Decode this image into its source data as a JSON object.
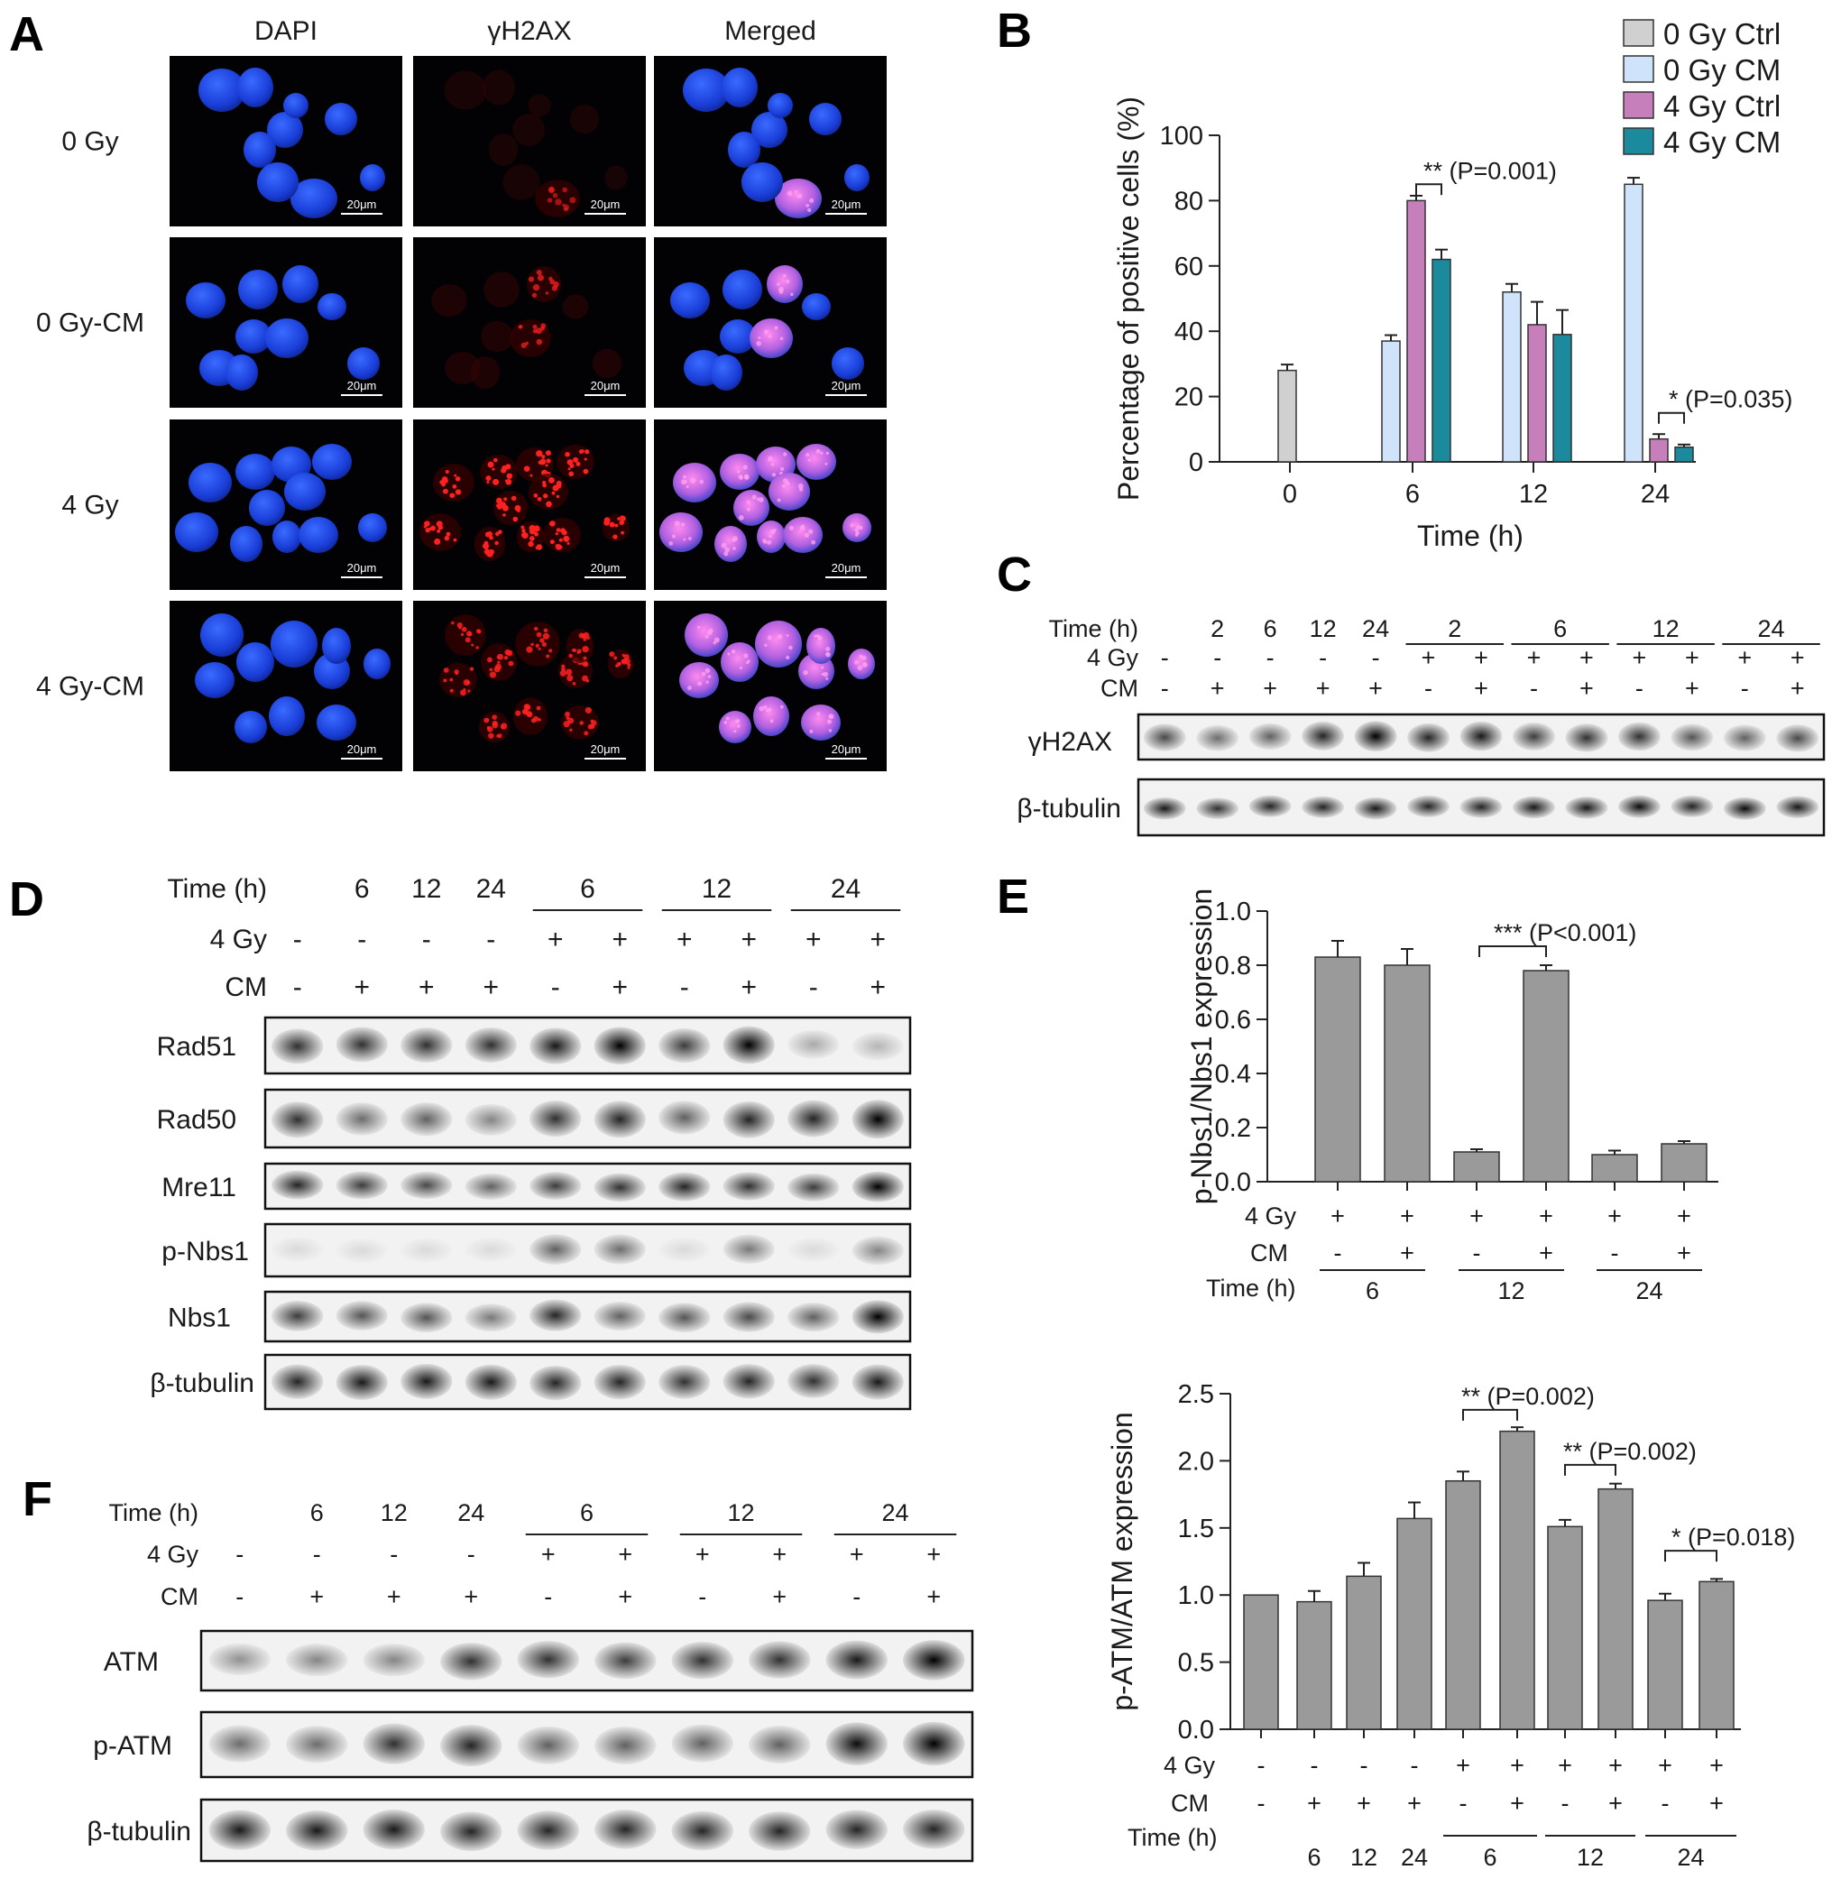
{
  "panelA": {
    "letter": "A",
    "col_headers": [
      "DAPI",
      "γH2AX",
      "Merged"
    ],
    "row_labels": [
      "0 Gy",
      "0 Gy-CM",
      "4 Gy",
      "4 Gy-CM"
    ],
    "scale_bar": "20μm"
  },
  "panelB": {
    "letter": "B",
    "chart_data": {
      "type": "bar",
      "ylabel": "Percentage of positive cells (%)",
      "xlabel": "Time (h)",
      "categories": [
        "0",
        "6",
        "12",
        "24"
      ],
      "ylim": [
        0,
        100
      ],
      "yticks": [
        "0",
        "20",
        "40",
        "60",
        "80",
        "100"
      ],
      "series": [
        {
          "name": "0 Gy Ctrl",
          "color": "#d0d0d0",
          "values": [
            28,
            null,
            null,
            null
          ],
          "errors": [
            1.8,
            null,
            null,
            null
          ]
        },
        {
          "name": "0 Gy CM",
          "color": "#cfe3fa",
          "values": [
            null,
            37,
            52,
            85
          ],
          "errors": [
            null,
            1.8,
            2.5,
            2
          ]
        },
        {
          "name": "4 Gy Ctrl",
          "color": "#c77fbb",
          "values": [
            null,
            80,
            42,
            7
          ],
          "errors": [
            null,
            1.5,
            7,
            1.5
          ]
        },
        {
          "name": "4 Gy CM",
          "color": "#1a8a9c",
          "values": [
            null,
            62,
            39,
            4.5
          ],
          "errors": [
            null,
            3,
            7.5,
            0.8
          ]
        }
      ],
      "annotations": [
        {
          "stars": "**",
          "p": "(P=0.001)"
        },
        {
          "stars": "*",
          "p": "(P=0.035)"
        }
      ],
      "legend_position": "top-right"
    }
  },
  "panelC": {
    "letter": "C",
    "row_headers": [
      "Time (h)",
      "4 Gy",
      "CM"
    ],
    "time_cells": [
      "2",
      "6",
      "12",
      "24"
    ],
    "group_times": [
      "2",
      "6",
      "12",
      "24"
    ],
    "gy_signs": [
      "-",
      "-",
      "-",
      "-",
      "-",
      "+",
      "+",
      "+",
      "+",
      "+",
      "+",
      "+",
      "+"
    ],
    "cm_signs": [
      "-",
      "+",
      "+",
      "+",
      "+",
      "-",
      "+",
      "-",
      "+",
      "-",
      "+",
      "-",
      "+"
    ],
    "blots": [
      "γH2AX",
      "β-tubulin"
    ]
  },
  "panelD": {
    "letter": "D",
    "row_headers": [
      "Time (h)",
      "4 Gy",
      "CM"
    ],
    "time_cells": [
      "6",
      "12",
      "24"
    ],
    "group_times": [
      "6",
      "12",
      "24"
    ],
    "gy_signs": [
      "-",
      "-",
      "-",
      "-",
      "+",
      "+",
      "+",
      "+",
      "+",
      "+"
    ],
    "cm_signs": [
      "-",
      "+",
      "+",
      "+",
      "-",
      "+",
      "-",
      "+",
      "-",
      "+"
    ],
    "blots": [
      "Rad51",
      "Rad50",
      "Mre11",
      "p-Nbs1",
      "Nbs1",
      "β-tubulin"
    ]
  },
  "panelE": {
    "letter": "E",
    "chart_data": {
      "type": "bar",
      "ylabel": "p-Nbs1/Nbs1 expression",
      "ylim": [
        0,
        1.0
      ],
      "yticks": [
        "0.0",
        "0.2",
        "0.4",
        "0.6",
        "0.8",
        "1.0"
      ],
      "values": [
        0.83,
        0.8,
        0.11,
        0.78,
        0.1,
        0.14
      ],
      "errors": [
        0.06,
        0.06,
        0.01,
        0.02,
        0.015,
        0.01
      ],
      "bar_color": "#9a9a9a",
      "row_headers": [
        "4 Gy",
        "CM",
        "Time (h)"
      ],
      "gy_signs": [
        "+",
        "+",
        "+",
        "+",
        "+",
        "+"
      ],
      "cm_signs": [
        "-",
        "+",
        "-",
        "+",
        "-",
        "+"
      ],
      "group_times": [
        "6",
        "12",
        "24"
      ],
      "annotations": [
        {
          "stars": "***",
          "p": "(P<0.001)"
        }
      ]
    }
  },
  "panelF": {
    "letter": "F",
    "row_headers": [
      "Time (h)",
      "4 Gy",
      "CM"
    ],
    "time_cells": [
      "6",
      "12",
      "24"
    ],
    "group_times": [
      "6",
      "12",
      "24"
    ],
    "gy_signs": [
      "-",
      "-",
      "-",
      "-",
      "+",
      "+",
      "+",
      "+",
      "+",
      "+"
    ],
    "cm_signs": [
      "-",
      "+",
      "+",
      "+",
      "-",
      "+",
      "-",
      "+",
      "-",
      "+"
    ],
    "blots": [
      "ATM",
      "p-ATM",
      "β-tubulin"
    ],
    "chart_data": {
      "type": "bar",
      "ylabel": "p-ATM/ATM expression",
      "ylim": [
        0,
        2.5
      ],
      "yticks": [
        "0.0",
        "0.5",
        "1.0",
        "1.5",
        "2.0",
        "2.5"
      ],
      "values": [
        1.0,
        0.95,
        1.14,
        1.57,
        1.85,
        2.22,
        1.51,
        1.79,
        0.96,
        1.1
      ],
      "errors": [
        0,
        0.08,
        0.1,
        0.12,
        0.07,
        0.03,
        0.05,
        0.04,
        0.05,
        0.02
      ],
      "bar_color": "#9a9a9a",
      "row_headers": [
        "4 Gy",
        "CM",
        "Time (h)"
      ],
      "gy_signs": [
        "-",
        "-",
        "-",
        "-",
        "+",
        "+",
        "+",
        "+",
        "+",
        "+"
      ],
      "cm_signs": [
        "-",
        "+",
        "+",
        "+",
        "-",
        "+",
        "-",
        "+",
        "-",
        "+"
      ],
      "time_cells": [
        "6",
        "12",
        "24"
      ],
      "group_times": [
        "6",
        "12",
        "24"
      ],
      "annotations": [
        {
          "stars": "**",
          "p": "(P=0.002)"
        },
        {
          "stars": "**",
          "p": "(P=0.002)"
        },
        {
          "stars": "*",
          "p": "(P=0.018)"
        }
      ]
    }
  }
}
